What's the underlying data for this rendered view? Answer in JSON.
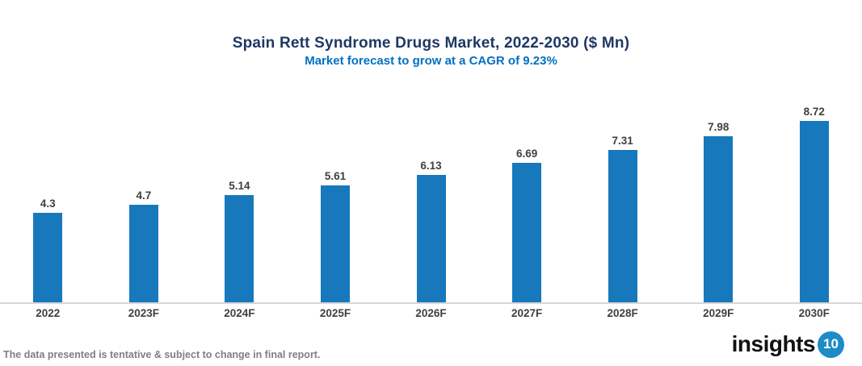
{
  "chart_data": {
    "type": "bar",
    "title": "Spain Rett Syndrome Drugs Market, 2022-2030 ($ Mn)",
    "subtitle": "Market forecast to grow at a CAGR of 9.23%",
    "categories": [
      "2022",
      "2023F",
      "2024F",
      "2025F",
      "2026F",
      "2027F",
      "2028F",
      "2029F",
      "2030F"
    ],
    "values": [
      4.3,
      4.7,
      5.14,
      5.61,
      6.13,
      6.69,
      7.31,
      7.98,
      8.72
    ],
    "value_labels": [
      "4.3",
      "4.7",
      "5.14",
      "5.61",
      "6.13",
      "6.69",
      "7.31",
      "7.98",
      "8.72"
    ],
    "xlabel": "",
    "ylabel": "",
    "ylim": [
      0,
      9.5
    ],
    "grid": false,
    "legend_position": "none",
    "value_labels_position": "above-bars"
  },
  "footer": {
    "disclaimer": "The data presented is tentative & subject to change in final report.",
    "logo_text": "insights",
    "logo_number": "10"
  },
  "colors": {
    "title": "#1f3864",
    "subtitle": "#0070c0",
    "bar": "#1878bc",
    "value_label": "#3f3f3f",
    "axis_label": "#3f3f3f",
    "baseline": "#d6d6d6",
    "disclaimer": "#7f7f7f",
    "logo_circle": "#1e8bc7"
  }
}
